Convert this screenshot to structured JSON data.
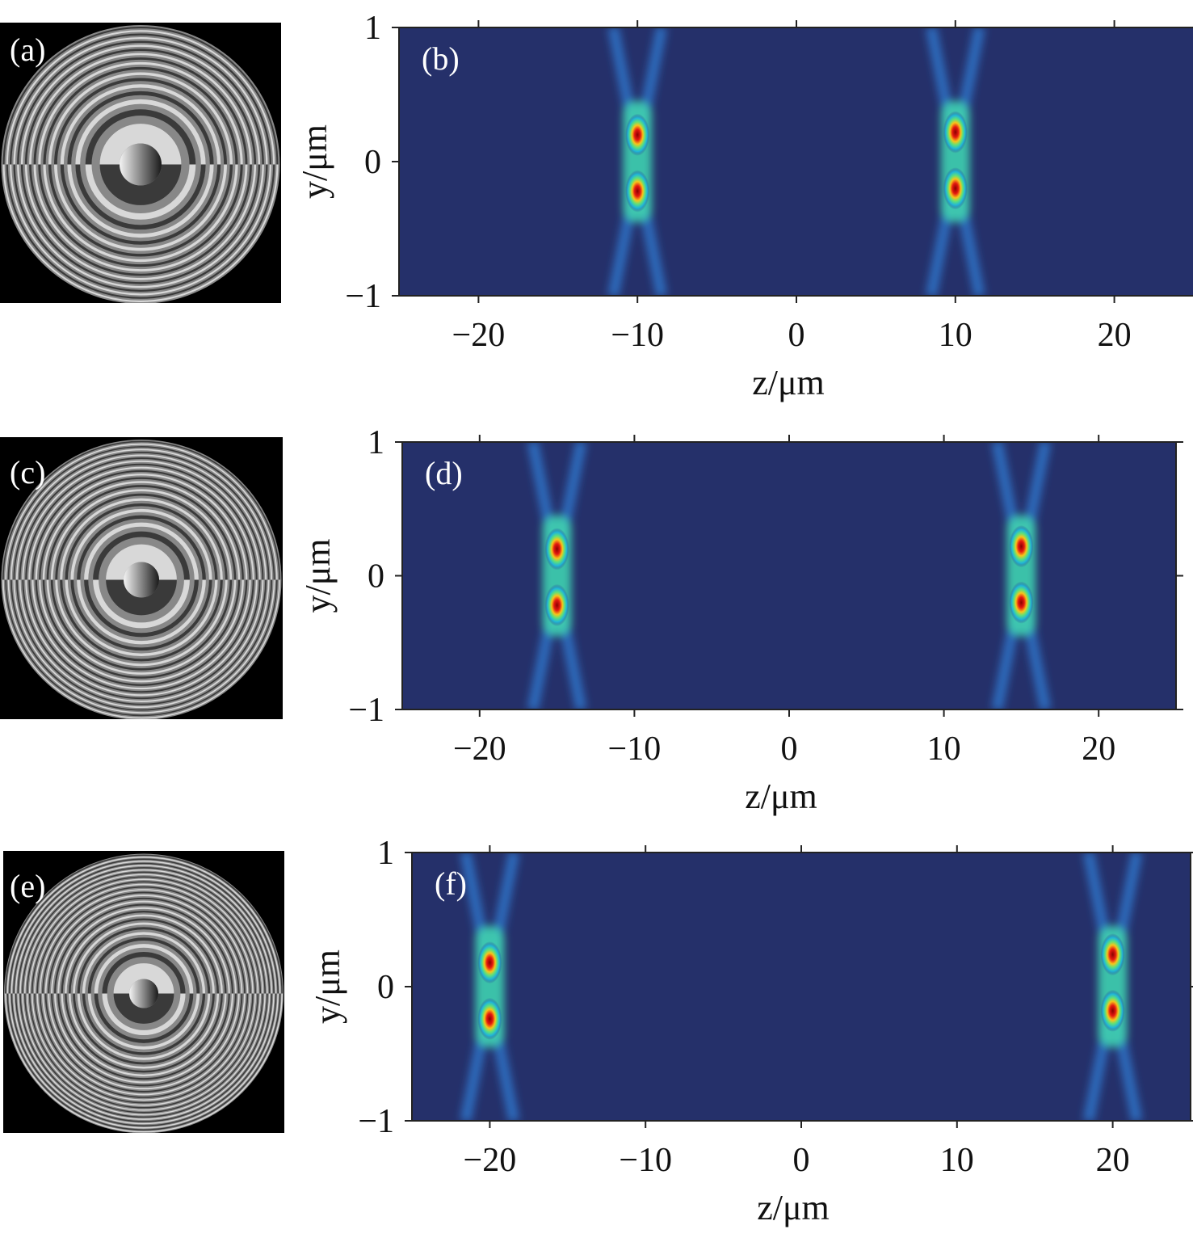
{
  "figure": {
    "rows": [
      {
        "mask_label": "(a)",
        "plot_label": "(b)",
        "focus_z": 10
      },
      {
        "mask_label": "(c)",
        "plot_label": "(d)",
        "focus_z": 15
      },
      {
        "mask_label": "(e)",
        "plot_label": "(f)",
        "focus_z": 20
      }
    ]
  },
  "chart_data": [
    {
      "type": "heatmap",
      "panel": "(b)",
      "xlabel": "z/μm",
      "ylabel": "y/μm",
      "xlim": [
        -25,
        25
      ],
      "ylim": [
        -1,
        1
      ],
      "xticks": [
        -20,
        -10,
        0,
        10,
        20
      ],
      "yticks": [
        -1,
        0,
        1
      ],
      "xtick_labels": [
        "−20",
        "−10",
        "0",
        "10",
        "20"
      ],
      "ytick_labels": [
        "−1",
        "0",
        "1"
      ],
      "colormap": "jet",
      "peaks": [
        {
          "z": -10,
          "y": 0.2
        },
        {
          "z": -10,
          "y": -0.22
        },
        {
          "z": 10,
          "y": 0.22
        },
        {
          "z": 10,
          "y": -0.2
        }
      ]
    },
    {
      "type": "heatmap",
      "panel": "(d)",
      "xlabel": "z/μm",
      "ylabel": "y/μm",
      "xlim": [
        -25,
        25
      ],
      "ylim": [
        -1,
        1
      ],
      "xticks": [
        -20,
        -10,
        0,
        10,
        20
      ],
      "yticks": [
        -1,
        0,
        1
      ],
      "xtick_labels": [
        "−20",
        "−10",
        "0",
        "10",
        "20"
      ],
      "ytick_labels": [
        "−1",
        "0",
        "1"
      ],
      "colormap": "jet",
      "peaks": [
        {
          "z": -15,
          "y": 0.2
        },
        {
          "z": -15,
          "y": -0.22
        },
        {
          "z": 15,
          "y": 0.22
        },
        {
          "z": 15,
          "y": -0.2
        }
      ]
    },
    {
      "type": "heatmap",
      "panel": "(f)",
      "xlabel": "z/μm",
      "ylabel": "y/μm",
      "xlim": [
        -25,
        25
      ],
      "ylim": [
        -1,
        1
      ],
      "xticks": [
        -20,
        -10,
        0,
        10,
        20
      ],
      "yticks": [
        -1,
        0,
        1
      ],
      "xtick_labels": [
        "−20",
        "−10",
        "0",
        "10",
        "20"
      ],
      "ytick_labels": [
        "−1",
        "0",
        "1"
      ],
      "colormap": "jet",
      "peaks": [
        {
          "z": -20,
          "y": 0.18
        },
        {
          "z": -20,
          "y": -0.24
        },
        {
          "z": 20,
          "y": 0.24
        },
        {
          "z": 20,
          "y": -0.18
        }
      ]
    }
  ]
}
